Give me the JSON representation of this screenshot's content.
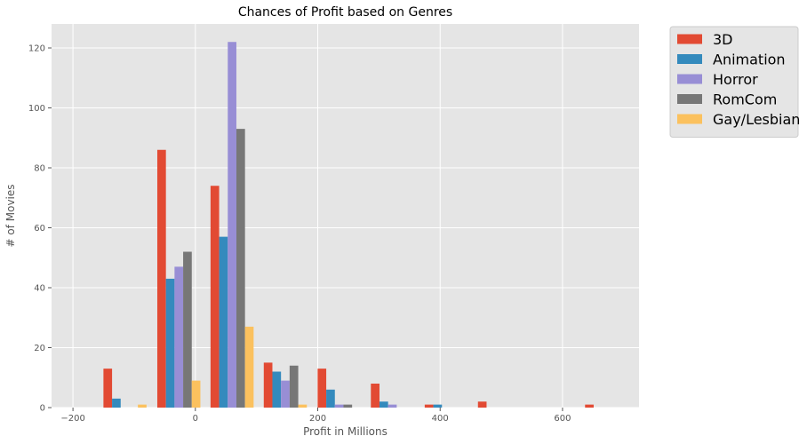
{
  "chart_data": {
    "type": "bar",
    "title": "Chances of Profit based on Genres",
    "xlabel": "Profit in Millions",
    "ylabel": "# of Movies",
    "xlim": [
      -235,
      725
    ],
    "ylim": [
      0,
      128
    ],
    "xticks": [
      -200,
      0,
      200,
      400,
      600
    ],
    "yticks": [
      0,
      20,
      40,
      60,
      80,
      100,
      120
    ],
    "grid": true,
    "legend_position": "outside-top-right",
    "bin_centers": [
      -115,
      -27,
      60,
      147,
      235,
      322,
      410,
      497,
      585,
      672
    ],
    "series": [
      {
        "name": "3D",
        "color": "#e24a33",
        "values": [
          13,
          86,
          74,
          15,
          13,
          8,
          1,
          2,
          0,
          1
        ]
      },
      {
        "name": "Animation",
        "color": "#348abd",
        "values": [
          3,
          43,
          57,
          12,
          6,
          2,
          1,
          0,
          0,
          0
        ]
      },
      {
        "name": "Horror",
        "color": "#988ed5",
        "values": [
          0,
          47,
          122,
          9,
          1,
          1,
          0,
          0,
          0,
          0
        ]
      },
      {
        "name": "RomCom",
        "color": "#777777",
        "values": [
          0,
          52,
          93,
          14,
          1,
          0,
          0,
          0,
          0,
          0
        ]
      },
      {
        "name": "Gay/Lesbian",
        "color": "#fbc15e",
        "values": [
          1,
          9,
          27,
          1,
          0,
          0,
          0,
          0,
          0,
          0
        ]
      }
    ]
  }
}
